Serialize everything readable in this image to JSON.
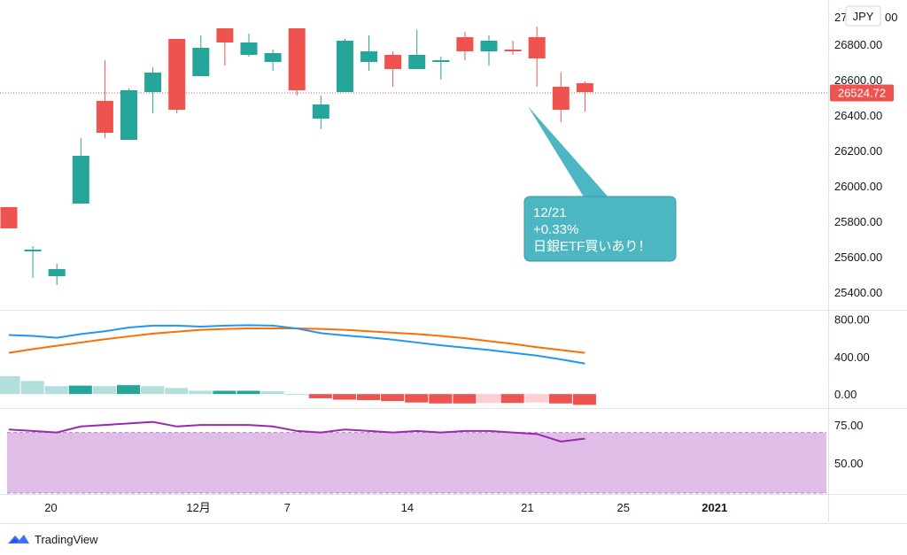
{
  "currency_label": "JPY",
  "top_axis_partial": "27",
  "top_axis_partial_tail": "00",
  "brand": "TradingView",
  "callout": {
    "lines": [
      "12/21",
      "+0.33%",
      "日銀ETF買いあり！"
    ]
  },
  "colors": {
    "up": "#26a69a",
    "down": "#ef5350",
    "macd_line": "#2196f3",
    "signal_line": "#ff6d00",
    "hist_pos": "#b2dfdb",
    "hist_pos_strong": "#26a69a",
    "hist_neg": "#ef5350",
    "hist_neg_weak": "#ffcdd2",
    "rsi_line": "#9c27b0",
    "rsi_band": "#e1bee7",
    "callout_bg": "#4db6c3",
    "price_tag": "#ef5350"
  },
  "chart_data": {
    "type": "candlestick",
    "price_panel": {
      "y_ticks": [
        "26800.00",
        "26600.00",
        "26400.00",
        "26200.00",
        "26000.00",
        "25800.00",
        "25600.00",
        "25400.00"
      ],
      "y_range": [
        25300,
        27050
      ],
      "last_price": "26524.72",
      "candles": [
        {
          "o": 25880,
          "h": 25880,
          "l": 25760,
          "c": 25760
        },
        {
          "o": 25630,
          "h": 25660,
          "l": 25480,
          "c": 25640
        },
        {
          "o": 25490,
          "h": 25560,
          "l": 25440,
          "c": 25530
        },
        {
          "o": 25900,
          "h": 26270,
          "l": 25900,
          "c": 26170
        },
        {
          "o": 26480,
          "h": 26710,
          "l": 26270,
          "c": 26300
        },
        {
          "o": 26260,
          "h": 26550,
          "l": 26260,
          "c": 26540
        },
        {
          "o": 26530,
          "h": 26670,
          "l": 26410,
          "c": 26640
        },
        {
          "o": 26830,
          "h": 26830,
          "l": 26410,
          "c": 26430
        },
        {
          "o": 26620,
          "h": 26850,
          "l": 26620,
          "c": 26780
        },
        {
          "o": 26890,
          "h": 26890,
          "l": 26680,
          "c": 26810
        },
        {
          "o": 26740,
          "h": 26860,
          "l": 26730,
          "c": 26810
        },
        {
          "o": 26700,
          "h": 26770,
          "l": 26650,
          "c": 26750
        },
        {
          "o": 26890,
          "h": 26890,
          "l": 26510,
          "c": 26540
        },
        {
          "o": 26380,
          "h": 26510,
          "l": 26320,
          "c": 26460
        },
        {
          "o": 26530,
          "h": 26830,
          "l": 26530,
          "c": 26820
        },
        {
          "o": 26700,
          "h": 26850,
          "l": 26650,
          "c": 26760
        },
        {
          "o": 26740,
          "h": 26760,
          "l": 26560,
          "c": 26660
        },
        {
          "o": 26660,
          "h": 26880,
          "l": 26660,
          "c": 26740
        },
        {
          "o": 26700,
          "h": 26730,
          "l": 26600,
          "c": 26710
        },
        {
          "o": 26840,
          "h": 26870,
          "l": 26710,
          "c": 26760
        },
        {
          "o": 26760,
          "h": 26850,
          "l": 26680,
          "c": 26820
        },
        {
          "o": 26770,
          "h": 26820,
          "l": 26740,
          "c": 26760
        },
        {
          "o": 26840,
          "h": 26900,
          "l": 26560,
          "c": 26720
        },
        {
          "o": 26560,
          "h": 26640,
          "l": 26360,
          "c": 26430
        },
        {
          "o": 26580,
          "h": 26590,
          "l": 26420,
          "c": 26530
        }
      ]
    },
    "macd_panel": {
      "y_ticks": [
        "800.00",
        "400.00",
        "0.00"
      ],
      "y_range": [
        -140,
        880
      ],
      "macd": [
        630,
        620,
        600,
        640,
        670,
        710,
        730,
        730,
        720,
        730,
        735,
        730,
        700,
        650,
        625,
        605,
        580,
        550,
        520,
        495,
        470,
        440,
        410,
        370,
        325
      ],
      "signal": [
        440,
        480,
        515,
        550,
        585,
        615,
        645,
        665,
        685,
        695,
        700,
        700,
        700,
        695,
        685,
        670,
        655,
        640,
        620,
        595,
        565,
        535,
        500,
        470,
        440
      ],
      "histogram": [
        190,
        140,
        85,
        90,
        85,
        95,
        85,
        65,
        35,
        35,
        35,
        30,
        0,
        -45,
        -60,
        -65,
        -75,
        -90,
        -100,
        -100,
        -95,
        -95,
        -90,
        -100,
        -115
      ]
    },
    "rsi_panel": {
      "y_ticks": [
        "75.00",
        "50.00"
      ],
      "y_range": [
        30,
        85
      ],
      "band": [
        30,
        70
      ],
      "values": [
        72,
        71,
        70,
        74,
        75,
        76,
        77,
        74,
        75,
        75,
        75,
        74,
        71,
        70,
        72,
        71,
        70,
        71,
        70,
        71,
        71,
        70,
        69,
        64,
        66
      ]
    },
    "x_labels": [
      "20",
      "12月",
      "7",
      "14",
      "21",
      "25",
      "2021"
    ]
  }
}
